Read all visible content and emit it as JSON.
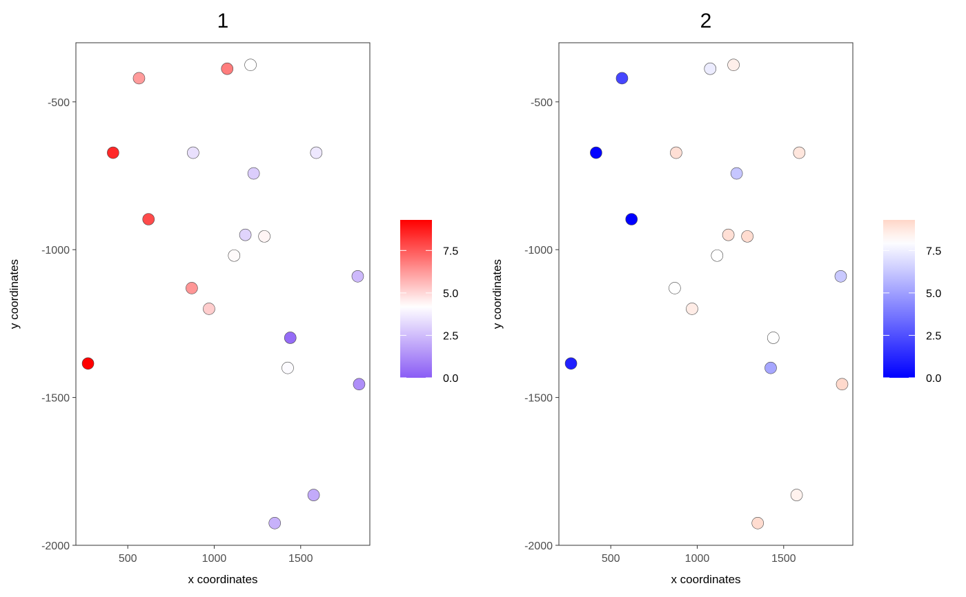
{
  "chart_data": [
    {
      "type": "scatter",
      "title": "1",
      "xlabel": "x coordinates",
      "ylabel": "y coordinates",
      "xlim": [
        200,
        1900
      ],
      "ylim": [
        -2000,
        -300
      ],
      "x_ticks": [
        500,
        1000,
        1500
      ],
      "y_ticks": [
        -500,
        -1000,
        -1500,
        -2000
      ],
      "grid": false,
      "legend": {
        "type": "colorbar",
        "min": 0,
        "max": 9.3,
        "ticks": [
          0,
          2.5,
          5,
          7.5
        ],
        "tick_labels": [
          "0.0",
          "2.5",
          "5.0",
          "7.5"
        ],
        "colors": {
          "low": "#8a5cf5",
          "mid": "#ffffff",
          "high": "#ff0000"
        },
        "midpoint": 4.2
      },
      "points": [
        {
          "x": 565,
          "y": -420,
          "value": 6.2
        },
        {
          "x": 1075,
          "y": -388,
          "value": 6.8
        },
        {
          "x": 1210,
          "y": -375,
          "value": 4.2
        },
        {
          "x": 415,
          "y": -672,
          "value": 8.5
        },
        {
          "x": 878,
          "y": -672,
          "value": 3.4
        },
        {
          "x": 1590,
          "y": -672,
          "value": 3.6
        },
        {
          "x": 1228,
          "y": -742,
          "value": 2.9
        },
        {
          "x": 620,
          "y": -897,
          "value": 7.8
        },
        {
          "x": 1180,
          "y": -950,
          "value": 3.1
        },
        {
          "x": 1290,
          "y": -955,
          "value": 4.4
        },
        {
          "x": 1115,
          "y": -1020,
          "value": 4.3
        },
        {
          "x": 1830,
          "y": -1090,
          "value": 2.4
        },
        {
          "x": 870,
          "y": -1130,
          "value": 6.3
        },
        {
          "x": 970,
          "y": -1200,
          "value": 5.2
        },
        {
          "x": 1440,
          "y": -1298,
          "value": 0.4
        },
        {
          "x": 270,
          "y": -1385,
          "value": 9.3
        },
        {
          "x": 1425,
          "y": -1400,
          "value": 4.1
        },
        {
          "x": 1838,
          "y": -1455,
          "value": 1.3
        },
        {
          "x": 1575,
          "y": -1830,
          "value": 2.0
        },
        {
          "x": 1350,
          "y": -1925,
          "value": 2.2
        }
      ]
    },
    {
      "type": "scatter",
      "title": "2",
      "xlabel": "x coordinates",
      "ylabel": "y coordinates",
      "xlim": [
        200,
        1900
      ],
      "ylim": [
        -2000,
        -300
      ],
      "x_ticks": [
        500,
        1000,
        1500
      ],
      "y_ticks": [
        -500,
        -1000,
        -1500,
        -2000
      ],
      "grid": false,
      "legend": {
        "type": "colorbar",
        "min": 0,
        "max": 9.3,
        "ticks": [
          0,
          2.5,
          5,
          7.5
        ],
        "tick_labels": [
          "0.0",
          "2.5",
          "5.0",
          "7.5"
        ],
        "colors": {
          "low": "#0000ff",
          "mid": "#ffffff",
          "high": "#ffd6c8"
        },
        "midpoint": 8.0
      },
      "points": [
        {
          "x": 565,
          "y": -420,
          "value": 2.2
        },
        {
          "x": 1075,
          "y": -388,
          "value": 7.4
        },
        {
          "x": 1210,
          "y": -375,
          "value": 8.5
        },
        {
          "x": 415,
          "y": -672,
          "value": 0.1
        },
        {
          "x": 878,
          "y": -672,
          "value": 9.0
        },
        {
          "x": 1590,
          "y": -672,
          "value": 8.8
        },
        {
          "x": 1228,
          "y": -742,
          "value": 6.2
        },
        {
          "x": 620,
          "y": -897,
          "value": 0.0
        },
        {
          "x": 1180,
          "y": -950,
          "value": 9.0
        },
        {
          "x": 1290,
          "y": -955,
          "value": 9.1
        },
        {
          "x": 1115,
          "y": -1020,
          "value": 8.0
        },
        {
          "x": 1830,
          "y": -1090,
          "value": 6.3
        },
        {
          "x": 870,
          "y": -1130,
          "value": 8.0
        },
        {
          "x": 970,
          "y": -1200,
          "value": 8.6
        },
        {
          "x": 1440,
          "y": -1298,
          "value": 8.0
        },
        {
          "x": 270,
          "y": -1385,
          "value": 1.0
        },
        {
          "x": 1425,
          "y": -1400,
          "value": 5.2
        },
        {
          "x": 1838,
          "y": -1455,
          "value": 9.2
        },
        {
          "x": 1575,
          "y": -1830,
          "value": 8.4
        },
        {
          "x": 1350,
          "y": -1925,
          "value": 9.1
        }
      ]
    }
  ]
}
